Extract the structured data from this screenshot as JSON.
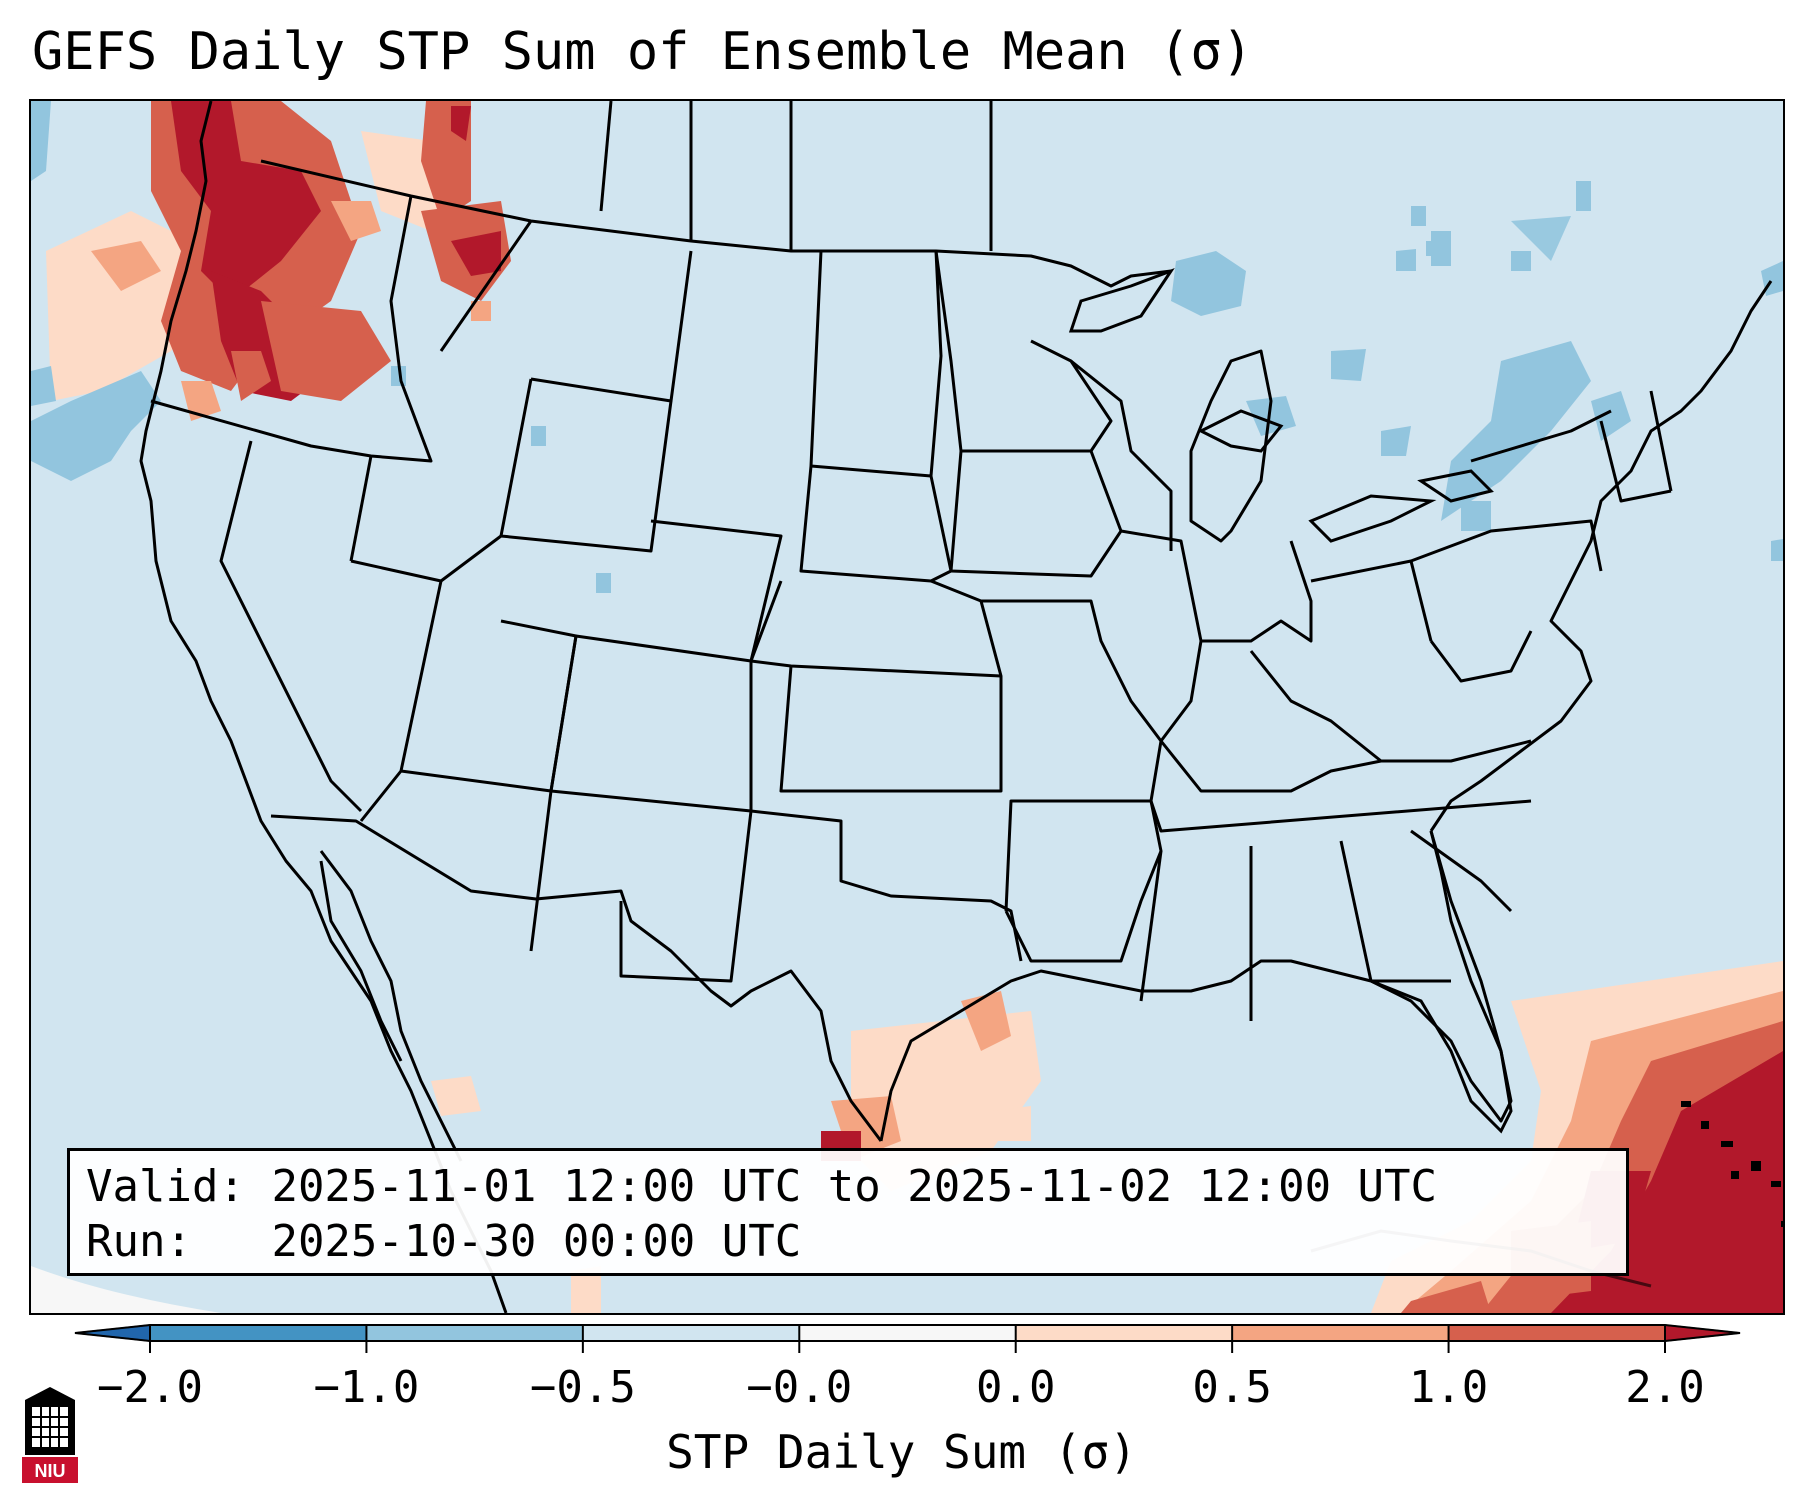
{
  "title": "GEFS Daily STP Sum of Ensemble Mean (σ)",
  "info": {
    "valid_label": "Valid:",
    "valid_value": "2025-11-01 12:00 UTC to 2025-11-02 12:00 UTC",
    "run_label": "Run:",
    "run_value": "2025-10-30 00:00 UTC"
  },
  "colorbar": {
    "label": "STP Daily Sum (σ)",
    "ticks": [
      "−2.0",
      "−1.0",
      "−0.5",
      "−0.0",
      "0.0",
      "0.5",
      "1.0",
      "2.0"
    ],
    "colors": {
      "under": "#2166ac",
      "bin_neg2_neg1": "#4393c3",
      "bin_neg1_neg05": "#92c5de",
      "bin_neg05_0": "#d1e5f0",
      "bin_0_0": "#f7f7f7",
      "bin_0_05": "#fddbc7",
      "bin_05_1": "#f4a582",
      "bin_1_2": "#d6604d",
      "over": "#b2182b"
    }
  },
  "map": {
    "region": "Continental United States",
    "background_color": "#d1e5f0",
    "anomaly_areas": [
      {
        "name": "Pacific Northwest",
        "level": "positive",
        "color": "#b2182b"
      },
      {
        "name": "Texas Gulf Coast",
        "level": "positive",
        "color": "#fddbc7"
      },
      {
        "name": "Caribbean / Bahamas",
        "level": "positive",
        "color": "#b2182b"
      },
      {
        "name": "Great Lakes",
        "level": "negative",
        "color": "#92c5de"
      },
      {
        "name": "Northeast",
        "level": "negative",
        "color": "#92c5de"
      }
    ]
  },
  "logo": {
    "text": "NIU",
    "color": "#c8102e"
  }
}
